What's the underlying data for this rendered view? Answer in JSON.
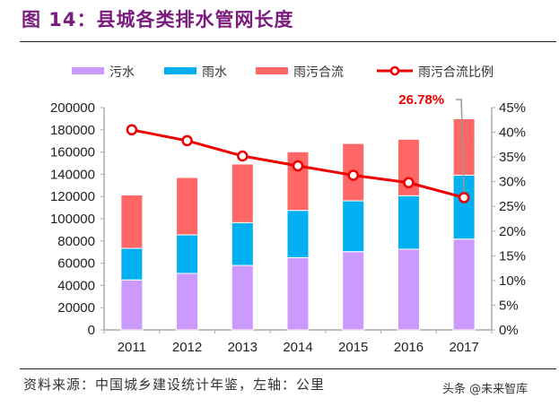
{
  "title": "图 14：县城各类排水管网长度",
  "source": "资料来源：中国城乡建设统计年鉴，左轴：公里",
  "watermark": "头条 @未来智库",
  "chart_data": {
    "type": "bar",
    "stacked": true,
    "categories": [
      "2011",
      "2012",
      "2013",
      "2014",
      "2015",
      "2016",
      "2017"
    ],
    "series": [
      {
        "name": "污水",
        "type": "bar",
        "axis": "left",
        "color": "#cc99ff",
        "values": [
          45000,
          50800,
          58000,
          65000,
          70400,
          72600,
          81700
        ]
      },
      {
        "name": "雨水",
        "type": "bar",
        "axis": "left",
        "color": "#00b0f0",
        "values": [
          28400,
          34700,
          38500,
          42500,
          45700,
          48100,
          57500
        ]
      },
      {
        "name": "雨污合流",
        "type": "bar",
        "axis": "left",
        "color": "#ff6666",
        "values": [
          48000,
          51600,
          52700,
          52700,
          51600,
          50800,
          50800
        ]
      },
      {
        "name": "雨污合流比例",
        "type": "line",
        "axis": "right",
        "color": "#ee0000",
        "values": [
          40.5,
          38.3,
          35.2,
          33.2,
          31.3,
          29.8,
          26.78
        ]
      }
    ],
    "annotation": {
      "text": "26.78%",
      "category": "2017",
      "series": "雨污合流比例"
    },
    "left_axis": {
      "range": [
        0,
        200000
      ],
      "ticks": [
        "0",
        "20000",
        "40000",
        "60000",
        "80000",
        "100000",
        "120000",
        "140000",
        "160000",
        "180000",
        "200000"
      ]
    },
    "right_axis": {
      "range": [
        0,
        45
      ],
      "ticks": [
        "0%",
        "5%",
        "10%",
        "15%",
        "20%",
        "25%",
        "30%",
        "35%",
        "40%",
        "45%"
      ]
    },
    "legend": "top",
    "grid": false
  }
}
